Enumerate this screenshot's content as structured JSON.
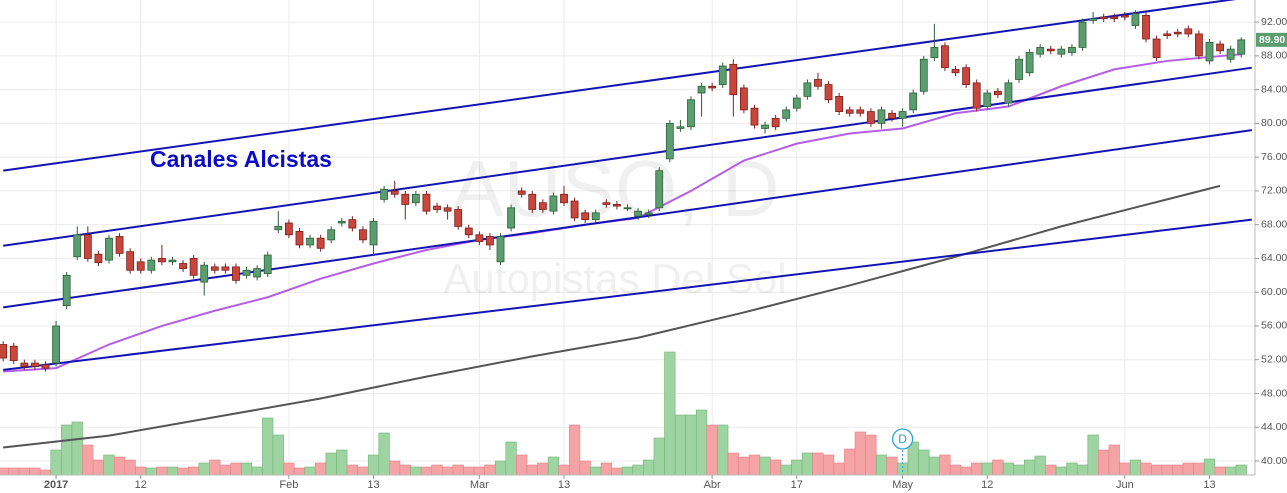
{
  "chart_data": {
    "type": "candlestick",
    "title": "Canales Alcistas",
    "watermark": "AUSO, D",
    "watermark_subtitle": "Autopistas Del Sol",
    "last_price": {
      "value": 89.9,
      "label": "89.90"
    },
    "grid": true,
    "up_color": "#5a9e6f",
    "down_color": "#c9463d",
    "xlim": [
      -0.3,
      118.3
    ],
    "ylim": [
      38.34,
      94.62
    ],
    "xticks": [
      {
        "value": 5,
        "label": "2017"
      },
      {
        "value": 13,
        "label": "12"
      },
      {
        "value": 27,
        "label": "Feb"
      },
      {
        "value": 35,
        "label": "13"
      },
      {
        "value": 45,
        "label": "Mar"
      },
      {
        "value": 53,
        "label": "13"
      },
      {
        "value": 67,
        "label": "Abr"
      },
      {
        "value": 75,
        "label": "17"
      },
      {
        "value": 85,
        "label": "May"
      },
      {
        "value": 93,
        "label": "12"
      },
      {
        "value": 106,
        "label": "Jun"
      },
      {
        "value": 114,
        "label": "13"
      }
    ],
    "yticks": [
      {
        "value": 40,
        "label": "40.00"
      },
      {
        "value": 44,
        "label": "44.00"
      },
      {
        "value": 48,
        "label": "48.00"
      },
      {
        "value": 52,
        "label": "52.00"
      },
      {
        "value": 56,
        "label": "56.00"
      },
      {
        "value": 60,
        "label": "60.00"
      },
      {
        "value": 64,
        "label": "64.00"
      },
      {
        "value": 68,
        "label": "68.00"
      },
      {
        "value": 72,
        "label": "72.00"
      },
      {
        "value": 76,
        "label": "76.00"
      },
      {
        "value": 80,
        "label": "80.00"
      },
      {
        "value": 84,
        "label": "84.00"
      },
      {
        "value": 88,
        "label": "88.00"
      },
      {
        "value": 92,
        "label": "92.00"
      }
    ],
    "open": [
      53.8,
      53.6,
      51.6,
      51.6,
      51.4,
      51.6,
      58.4,
      64.2,
      66.8,
      64.5,
      63.8,
      66.6,
      64.8,
      63.6,
      62.6,
      64.0,
      63.6,
      63.4,
      64.0,
      61.2,
      63.0,
      63.0,
      63.0,
      62.0,
      61.8,
      62.2,
      67.4,
      68.2,
      67.2,
      65.6,
      66.4,
      66.2,
      68.2,
      68.6,
      67.4,
      65.6,
      71.0,
      72.0,
      71.6,
      70.6,
      71.6,
      70.2,
      70.0,
      69.8,
      67.6,
      66.8,
      66.6,
      63.6,
      67.6,
      72.0,
      71.6,
      70.6,
      69.6,
      71.6,
      70.8,
      69.4,
      68.6,
      70.6,
      70.4,
      70.0,
      69.0,
      69.2,
      70.0,
      75.8,
      79.4,
      79.6,
      83.6,
      84.4,
      84.6,
      87.0,
      84.2,
      81.8,
      79.4,
      80.6,
      80.6,
      81.8,
      83.2,
      85.2,
      84.6,
      83.2,
      81.6,
      81.6,
      81.4,
      80.0,
      81.2,
      80.6,
      81.6,
      83.8,
      87.8,
      89.2,
      86.4,
      86.6,
      84.8,
      82.0,
      83.8,
      82.4,
      85.2,
      86.0,
      88.2,
      88.8,
      88.2,
      88.4,
      89.0,
      92.2,
      92.6,
      92.6,
      92.8,
      91.6,
      92.8,
      90.0,
      90.6,
      90.8,
      91.2,
      90.6,
      87.4,
      89.4,
      87.6,
      88.2
    ],
    "high": [
      54.2,
      54.0,
      52.0,
      52.0,
      51.8,
      56.6,
      62.4,
      67.8,
      67.8,
      64.9,
      66.8,
      67.0,
      65.2,
      64.0,
      64.2,
      65.6,
      64.2,
      63.8,
      64.4,
      63.6,
      63.4,
      63.4,
      63.4,
      63.0,
      63.2,
      64.8,
      69.6,
      68.6,
      67.6,
      66.8,
      66.8,
      67.8,
      68.8,
      69.0,
      67.8,
      68.8,
      72.6,
      73.2,
      72.0,
      72.0,
      72.0,
      70.6,
      70.4,
      70.2,
      68.0,
      67.2,
      67.0,
      67.0,
      70.4,
      72.4,
      72.0,
      71.0,
      71.8,
      72.6,
      71.2,
      69.8,
      69.8,
      71.0,
      70.8,
      70.4,
      70.0,
      69.8,
      74.8,
      80.4,
      80.4,
      83.2,
      84.8,
      84.8,
      87.2,
      87.6,
      84.6,
      82.2,
      80.2,
      81.0,
      82.0,
      83.4,
      85.2,
      86.0,
      85.0,
      83.6,
      82.0,
      82.0,
      81.8,
      82.0,
      81.6,
      81.8,
      84.0,
      88.0,
      91.8,
      89.6,
      86.8,
      87.0,
      85.2,
      84.0,
      84.2,
      85.2,
      88.0,
      88.8,
      89.4,
      89.2,
      89.2,
      89.4,
      92.4,
      93.2,
      93.0,
      93.0,
      93.2,
      93.4,
      93.2,
      90.4,
      91.0,
      91.2,
      91.6,
      91.0,
      90.0,
      89.8,
      89.2,
      90.2
    ],
    "low": [
      51.8,
      51.5,
      50.8,
      50.8,
      50.6,
      51.2,
      58.0,
      63.8,
      63.6,
      63.1,
      63.4,
      64.2,
      62.2,
      62.2,
      62.2,
      63.2,
      63.2,
      62.4,
      61.6,
      59.6,
      62.2,
      62.2,
      61.0,
      61.6,
      61.4,
      61.8,
      67.0,
      66.4,
      65.2,
      65.2,
      64.8,
      65.8,
      67.8,
      67.2,
      65.8,
      64.4,
      70.6,
      71.2,
      68.6,
      70.2,
      69.2,
      69.4,
      68.6,
      67.4,
      66.4,
      65.6,
      65.0,
      63.2,
      67.2,
      71.2,
      69.4,
      69.4,
      69.2,
      70.2,
      68.4,
      68.2,
      68.2,
      70.0,
      69.8,
      69.6,
      68.6,
      68.8,
      69.6,
      75.4,
      79.0,
      79.2,
      80.8,
      83.8,
      84.2,
      80.8,
      81.2,
      79.4,
      78.8,
      79.2,
      80.2,
      81.4,
      82.8,
      84.0,
      82.4,
      81.0,
      80.8,
      80.8,
      79.6,
      79.4,
      80.2,
      79.6,
      81.2,
      83.4,
      87.4,
      86.2,
      85.6,
      84.2,
      81.4,
      81.6,
      83.0,
      82.0,
      84.8,
      85.6,
      87.8,
      88.2,
      87.8,
      88.0,
      88.6,
      91.8,
      92.0,
      92.0,
      92.2,
      91.2,
      89.6,
      87.4,
      90.0,
      90.2,
      90.2,
      87.6,
      87.0,
      88.2,
      87.2,
      87.8
    ],
    "close": [
      52.2,
      51.9,
      51.2,
      51.2,
      51.0,
      56.0,
      62.0,
      66.8,
      64.0,
      63.5,
      66.4,
      64.6,
      62.6,
      62.6,
      63.8,
      63.6,
      63.8,
      62.8,
      62.0,
      63.2,
      62.6,
      62.6,
      61.4,
      62.6,
      62.8,
      64.4,
      67.8,
      66.8,
      65.6,
      66.4,
      65.2,
      67.4,
      68.4,
      67.6,
      66.2,
      68.4,
      72.2,
      71.6,
      70.4,
      71.6,
      69.6,
      69.8,
      69.6,
      67.8,
      66.8,
      66.0,
      65.6,
      66.6,
      70.0,
      71.6,
      69.8,
      69.8,
      71.4,
      70.6,
      68.8,
      68.6,
      69.4,
      70.4,
      70.2,
      70.0,
      69.6,
      69.4,
      74.4,
      80.0,
      79.6,
      82.8,
      84.4,
      84.2,
      86.8,
      83.4,
      81.6,
      79.8,
      79.8,
      79.6,
      81.6,
      83.0,
      84.8,
      84.4,
      82.8,
      81.4,
      81.2,
      81.2,
      80.0,
      81.6,
      80.6,
      81.4,
      83.6,
      87.6,
      89.0,
      86.6,
      86.0,
      84.6,
      81.8,
      83.6,
      83.4,
      84.8,
      87.6,
      88.4,
      89.0,
      88.6,
      88.8,
      89.0,
      92.0,
      92.4,
      92.4,
      92.4,
      92.6,
      93.0,
      90.0,
      87.8,
      90.4,
      90.6,
      90.6,
      88.0,
      89.6,
      88.6,
      88.8,
      89.9
    ],
    "volume": {
      "up_color": "#9ed3a2",
      "down_color": "#f6a3a6",
      "values": [
        7,
        7,
        7,
        7,
        5,
        25,
        50,
        53,
        30,
        15,
        20,
        18,
        15,
        8,
        7,
        8,
        8,
        7,
        8,
        12,
        15,
        10,
        12,
        12,
        8,
        57,
        40,
        12,
        7,
        8,
        12,
        22,
        25,
        10,
        8,
        20,
        42,
        14,
        10,
        8,
        8,
        10,
        8,
        10,
        8,
        8,
        10,
        14,
        33,
        20,
        10,
        12,
        18,
        10,
        50,
        14,
        8,
        12,
        7,
        8,
        10,
        15,
        37,
        123,
        60,
        60,
        65,
        50,
        50,
        22,
        18,
        20,
        18,
        15,
        10,
        15,
        22,
        22,
        20,
        12,
        26,
        43,
        40,
        20,
        18,
        12,
        33,
        25,
        18,
        20,
        10,
        8,
        12,
        12,
        15,
        12,
        10,
        15,
        19,
        10,
        8,
        12,
        10,
        40,
        25,
        30,
        12,
        15,
        12,
        10,
        10,
        10,
        12,
        12,
        16,
        8,
        8,
        10
      ]
    },
    "moving_averages": [
      {
        "color": "#b45ee6",
        "x": [
          0,
          5,
          10,
          15,
          20,
          25,
          30,
          35,
          40,
          45,
          50,
          55,
          60,
          65,
          70,
          75,
          80,
          85,
          90,
          95,
          100,
          105,
          110,
          117
        ],
        "values": [
          50.6,
          51.0,
          53.8,
          56.0,
          57.8,
          59.4,
          61.6,
          63.4,
          65.0,
          66.2,
          67.0,
          68.0,
          68.8,
          72.0,
          75.6,
          77.6,
          78.8,
          79.4,
          81.2,
          82.0,
          84.4,
          86.4,
          87.4,
          88.2
        ]
      },
      {
        "color": "#555555",
        "x": [
          0,
          10,
          20,
          30,
          40,
          50,
          60,
          70,
          80,
          90,
          100,
          110,
          115
        ],
        "values": [
          41.6,
          43.0,
          45.2,
          47.4,
          50.0,
          52.4,
          54.6,
          57.6,
          60.8,
          64.2,
          67.8,
          71.0,
          72.6
        ]
      }
    ],
    "channels": [
      {
        "color": "#1414b4",
        "x": [
          0,
          118
        ],
        "values": [
          74.4,
          95.0
        ]
      },
      {
        "color": "#1414b4",
        "x": [
          0,
          118
        ],
        "values": [
          65.5,
          86.6
        ]
      },
      {
        "color": "#1414b4",
        "x": [
          0,
          118
        ],
        "values": [
          58.2,
          79.2
        ]
      },
      {
        "color": "#1414b4",
        "x": [
          0,
          118
        ],
        "values": [
          50.8,
          68.6
        ]
      }
    ],
    "dividend": {
      "label": "D",
      "x": 85
    }
  }
}
